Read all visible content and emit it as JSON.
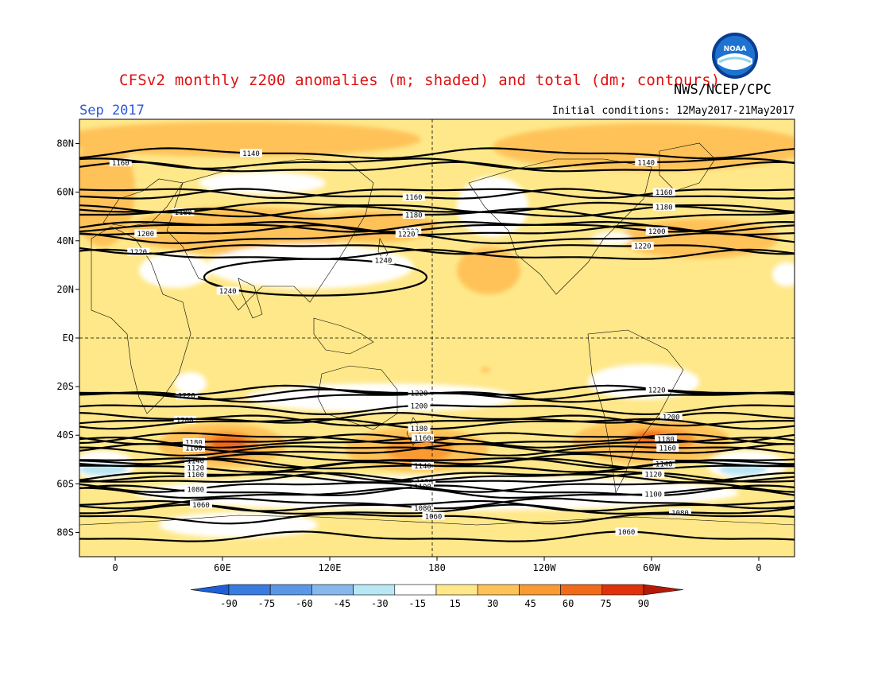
{
  "header": {
    "title": "CFSv2 monthly z200 anomalies (m; shaded) and total (dm; contours)",
    "org": "NWS/NCEP/CPC",
    "month": "Sep 2017",
    "initial_conditions": "Initial conditions: 12May2017-21May2017",
    "logo_text": "NOAA"
  },
  "axes": {
    "lat_labels": [
      "80N",
      "60N",
      "40N",
      "20N",
      "EQ",
      "20S",
      "40S",
      "60S",
      "80S"
    ],
    "lat_values": [
      80,
      60,
      40,
      20,
      0,
      -20,
      -40,
      -60,
      -80
    ],
    "lon_labels": [
      "0",
      "60E",
      "120E",
      "180",
      "120W",
      "60W",
      "0"
    ],
    "lon_values": [
      0,
      60,
      120,
      180,
      240,
      300,
      360
    ]
  },
  "colorbar": {
    "labels": [
      "-90",
      "-75",
      "-60",
      "-45",
      "-30",
      "-15",
      "15",
      "30",
      "45",
      "60",
      "75",
      "90"
    ],
    "colors": [
      "#1f5fd6",
      "#3a7be0",
      "#5b97e6",
      "#86b8ee",
      "#b8e6f2",
      "#ffffff",
      "#ffe88a",
      "#ffc259",
      "#f99a32",
      "#f06a1a",
      "#e0320a",
      "#b41a08"
    ]
  },
  "contours": [
    {
      "value": "1140",
      "lat": 76,
      "label_lon": 76
    },
    {
      "value": "1160",
      "lat": 70,
      "label_lon": 3
    },
    {
      "value": "1140",
      "lat": 72,
      "label_lon": 297
    },
    {
      "value": "1180",
      "lat": 54,
      "label_lon": 38
    },
    {
      "value": "1160",
      "lat": 59,
      "label_lon": 167
    },
    {
      "value": "1180",
      "lat": 51,
      "label_lon": 167
    },
    {
      "value": "1160",
      "lat": 60,
      "label_lon": 307
    },
    {
      "value": "1180",
      "lat": 52,
      "label_lon": 307
    },
    {
      "value": "1200",
      "lat": 44,
      "label_lon": 17
    },
    {
      "value": "1200",
      "lat": 46,
      "label_lon": 165
    },
    {
      "value": "1200",
      "lat": 46,
      "label_lon": 303
    },
    {
      "value": "1220",
      "lat": 34,
      "label_lon": 13
    },
    {
      "value": "1220",
      "lat": 41,
      "label_lon": 163
    },
    {
      "value": "1220",
      "lat": 37,
      "label_lon": 295
    },
    {
      "value": "1240",
      "lat": 32,
      "label_lon": 150
    },
    {
      "value": "1240",
      "lat": 19,
      "label_lon": 63
    },
    {
      "value": "1220",
      "lat": -24,
      "label_lon": 40
    },
    {
      "value": "1220",
      "lat": -23,
      "label_lon": 170
    },
    {
      "value": "1220",
      "lat": -22,
      "label_lon": 303
    },
    {
      "value": "1200",
      "lat": -34,
      "label_lon": 39
    },
    {
      "value": "1200",
      "lat": -29,
      "label_lon": 170
    },
    {
      "value": "1200",
      "lat": -33,
      "label_lon": 311
    },
    {
      "value": "1180",
      "lat": -42,
      "label_lon": 44
    },
    {
      "value": "1180",
      "lat": -35,
      "label_lon": 170
    },
    {
      "value": "1180",
      "lat": -41,
      "label_lon": 308
    },
    {
      "value": "1160",
      "lat": -46,
      "label_lon": 44
    },
    {
      "value": "1160",
      "lat": -43,
      "label_lon": 172
    },
    {
      "value": "1160",
      "lat": -46,
      "label_lon": 309
    },
    {
      "value": "1140",
      "lat": -50,
      "label_lon": 45
    },
    {
      "value": "1140",
      "lat": -52,
      "label_lon": 172
    },
    {
      "value": "1140",
      "lat": -51,
      "label_lon": 307
    },
    {
      "value": "1120",
      "lat": -53,
      "label_lon": 45
    },
    {
      "value": "1120",
      "lat": -58,
      "label_lon": 173
    },
    {
      "value": "1120",
      "lat": -57,
      "label_lon": 301
    },
    {
      "value": "1100",
      "lat": -57,
      "label_lon": 45
    },
    {
      "value": "1100",
      "lat": -63,
      "label_lon": 172
    },
    {
      "value": "1100",
      "lat": -64,
      "label_lon": 301
    },
    {
      "value": "1080",
      "lat": -61,
      "label_lon": 45
    },
    {
      "value": "1080",
      "lat": -68,
      "label_lon": 172
    },
    {
      "value": "1080",
      "lat": -71,
      "label_lon": 316
    },
    {
      "value": "1060",
      "lat": -69,
      "label_lon": 48
    },
    {
      "value": "1060",
      "lat": -74,
      "label_lon": 178
    },
    {
      "value": "1060",
      "lat": -82,
      "label_lon": 286
    }
  ]
}
